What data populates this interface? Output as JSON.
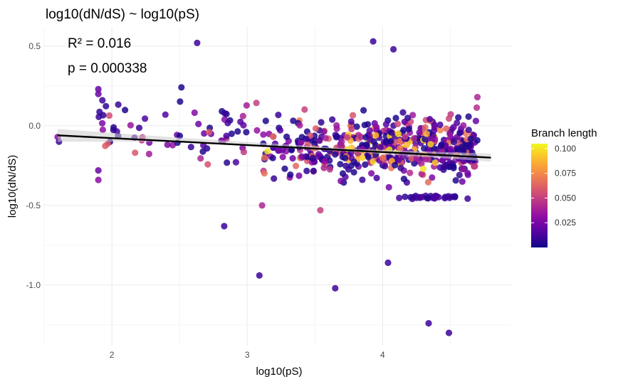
{
  "chart_data": {
    "type": "scatter",
    "title": "log10(dN/dS) ~ log10(pS)",
    "xlabel": "log10(pS)",
    "ylabel": "log10(dN/dS)",
    "xlim": [
      1.5,
      4.95
    ],
    "ylim": [
      -1.38,
      0.62
    ],
    "x_ticks": [
      2,
      3,
      4
    ],
    "x_tick_labels": [
      "2",
      "3",
      "4"
    ],
    "y_ticks": [
      0.5,
      0.0,
      -0.5,
      -1.0
    ],
    "y_tick_labels": [
      "0.5",
      "0.0",
      "-0.5",
      "-1.0"
    ],
    "grid": true,
    "annotations": [
      "R² = 0.016",
      "p = 0.000338"
    ],
    "fit_line": {
      "x": [
        1.6,
        4.8
      ],
      "y": [
        -0.06,
        -0.2
      ]
    },
    "legend": {
      "title": "Branch length",
      "position": "right",
      "ticks": [
        0.1,
        0.075,
        0.05,
        0.025
      ],
      "tick_labels": [
        "0.100",
        "0.075",
        "0.050",
        "0.025"
      ],
      "range": [
        0.0,
        0.105
      ]
    },
    "colors": {
      "low": "#0d0887",
      "mid_low": "#6a00a8",
      "mid": "#b12a90",
      "mid_high": "#e16462",
      "high": "#fca636",
      "top": "#f0f921",
      "line": "#000000",
      "band": "#cccccc"
    },
    "points_sample": [
      [
        2.63,
        0.52,
        0.01
      ],
      [
        3.93,
        0.53,
        0.01
      ],
      [
        4.08,
        0.48,
        0.01
      ],
      [
        1.9,
        0.23,
        0.02
      ],
      [
        1.9,
        0.2,
        0.02
      ],
      [
        1.93,
        0.16,
        0.01
      ],
      [
        1.6,
        -0.07,
        0.03
      ],
      [
        1.61,
        -0.1,
        0.01
      ],
      [
        1.9,
        -0.28,
        0.02
      ],
      [
        1.9,
        -0.34,
        0.03
      ],
      [
        2.83,
        -0.63,
        0.01
      ],
      [
        3.09,
        -0.94,
        0.01
      ],
      [
        3.65,
        -1.02,
        0.01
      ],
      [
        4.04,
        -0.86,
        0.01
      ],
      [
        4.34,
        -1.24,
        0.01
      ],
      [
        4.49,
        -1.3,
        0.01
      ],
      [
        4.7,
        0.18,
        0.04
      ],
      [
        3.11,
        -0.5,
        0.04
      ],
      [
        3.54,
        -0.53,
        0.05
      ],
      [
        4.05,
        -0.15,
        0.1
      ],
      [
        3.95,
        -0.06,
        0.09
      ],
      [
        4.3,
        -0.27,
        0.1
      ],
      [
        3.15,
        -0.16,
        0.1
      ],
      [
        3.85,
        -0.2,
        0.095
      ]
    ]
  }
}
